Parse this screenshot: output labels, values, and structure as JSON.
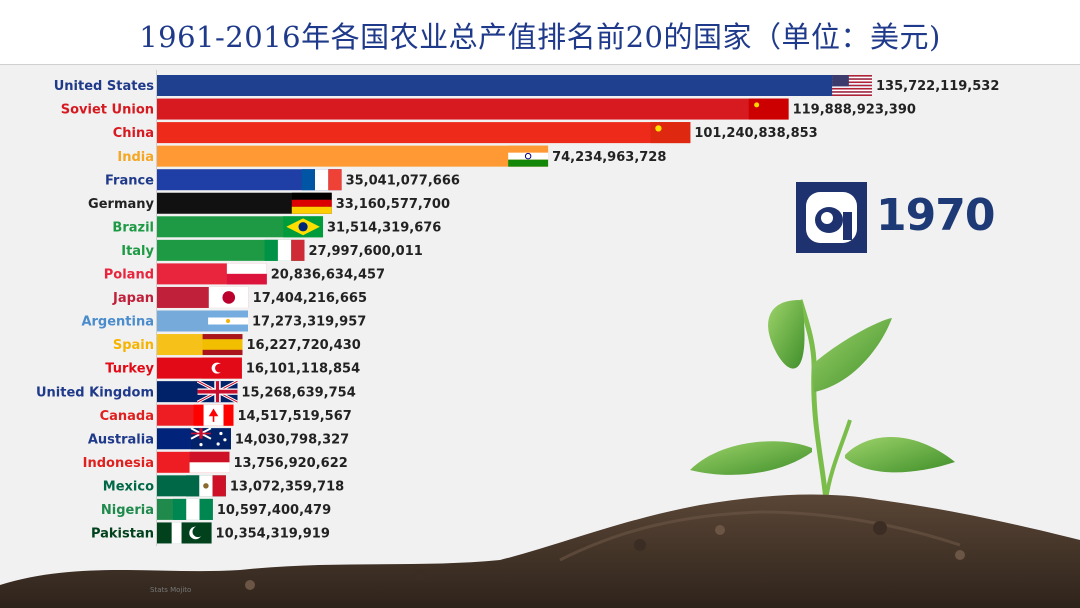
{
  "title": "1961-2016年各国农业总产值排名前20的国家（单位：美元)",
  "year": "1970",
  "watermark": "Stats Mojito",
  "chart_data": {
    "type": "bar",
    "orientation": "horizontal",
    "title": "1961-2016年各国农业总产值排名前20的国家（单位：美元)",
    "year": "1970",
    "categories": [
      "United States",
      "Soviet Union",
      "China",
      "India",
      "France",
      "Germany",
      "Brazil",
      "Italy",
      "Poland",
      "Japan",
      "Argentina",
      "Spain",
      "Turkey",
      "United Kingdom",
      "Canada",
      "Australia",
      "Indonesia",
      "Mexico",
      "Nigeria",
      "Pakistan"
    ],
    "values": [
      135722119532,
      119888923390,
      101240838853,
      74234963728,
      35041077666,
      33160577700,
      31514319676,
      27997600011,
      20836634457,
      17404216665,
      17273319957,
      16227720430,
      16101118854,
      15268639754,
      14517519567,
      14030798327,
      13756920622,
      13072359718,
      10597400479,
      10354319919
    ],
    "value_labels": [
      "135,722,119,532",
      "119,888,923,390",
      "101,240,838,853",
      "74,234,963,728",
      "35,041,077,666",
      "33,160,577,700",
      "31,514,319,676",
      "27,997,600,011",
      "20,836,634,457",
      "17,404,216,665",
      "17,273,319,957",
      "16,227,720,430",
      "16,101,118,854",
      "15,268,639,754",
      "14,517,519,567",
      "14,030,798,327",
      "13,756,920,622",
      "13,072,359,718",
      "10,597,400,479",
      "10,354,319,919"
    ],
    "colors": [
      "#1f3f8f",
      "#d71920",
      "#ee2a1b",
      "#ff9933",
      "#1f3fa6",
      "#111111",
      "#1e9a45",
      "#1e9a45",
      "#e8253c",
      "#c0203a",
      "#75aadb",
      "#f6c21a",
      "#e30a17",
      "#012169",
      "#ee1d23",
      "#01247a",
      "#ee1d23",
      "#006847",
      "#1f8a4c",
      "#01411c"
    ],
    "label_colors": [
      "#1f3a8a",
      "#d71920",
      "#d71920",
      "#f5a623",
      "#1f3a8a",
      "#222222",
      "#1e9a45",
      "#1e9a45",
      "#e8253c",
      "#c0203a",
      "#4a8ccc",
      "#f6b400",
      "#e30a17",
      "#1f3a8a",
      "#e0201e",
      "#1f3a8a",
      "#e0201e",
      "#006847",
      "#1f8a4c",
      "#01411c"
    ],
    "flags": [
      "us-flag-icon",
      "soviet-flag-icon",
      "china-flag-icon",
      "india-flag-icon",
      "france-flag-icon",
      "germany-flag-icon",
      "brazil-flag-icon",
      "italy-flag-icon",
      "poland-flag-icon",
      "japan-flag-icon",
      "argentina-flag-icon",
      "spain-flag-icon",
      "turkey-flag-icon",
      "uk-flag-icon",
      "canada-flag-icon",
      "australia-flag-icon",
      "indonesia-flag-icon",
      "mexico-flag-icon",
      "nigeria-flag-icon",
      "pakistan-flag-icon"
    ],
    "xlabel": "",
    "ylabel": "",
    "grid": false,
    "legend": "none"
  }
}
